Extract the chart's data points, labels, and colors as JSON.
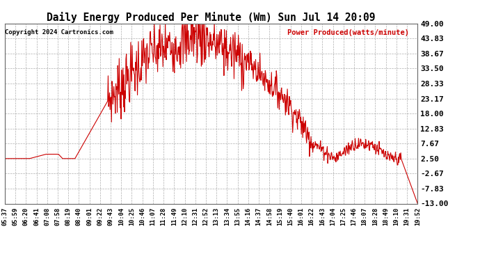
{
  "title": "Daily Energy Produced Per Minute (Wm) Sun Jul 14 20:09",
  "copyright": "Copyright 2024 Cartronics.com",
  "legend_label": "Power Produced(watts/minute)",
  "ylabel_ticks": [
    49.0,
    43.83,
    38.67,
    33.5,
    28.33,
    23.17,
    18.0,
    12.83,
    7.67,
    2.5,
    -2.67,
    -7.83,
    -13.0
  ],
  "ylim": [
    -13.0,
    49.0
  ],
  "title_color": "#000000",
  "legend_color": "#cc0000",
  "line_color": "#cc0000",
  "bg_color": "#ffffff",
  "grid_color": "#999999",
  "copyright_color": "#000000",
  "x_labels": [
    "05:37",
    "05:59",
    "06:20",
    "06:41",
    "07:08",
    "07:58",
    "08:19",
    "08:40",
    "09:01",
    "09:22",
    "09:43",
    "10:04",
    "10:25",
    "10:46",
    "11:07",
    "11:28",
    "11:49",
    "12:10",
    "12:31",
    "12:52",
    "13:13",
    "13:34",
    "13:55",
    "14:16",
    "14:37",
    "14:58",
    "15:19",
    "15:40",
    "16:01",
    "16:22",
    "16:43",
    "17:04",
    "17:25",
    "17:46",
    "18:07",
    "18:28",
    "18:49",
    "19:10",
    "19:31",
    "19:52"
  ]
}
